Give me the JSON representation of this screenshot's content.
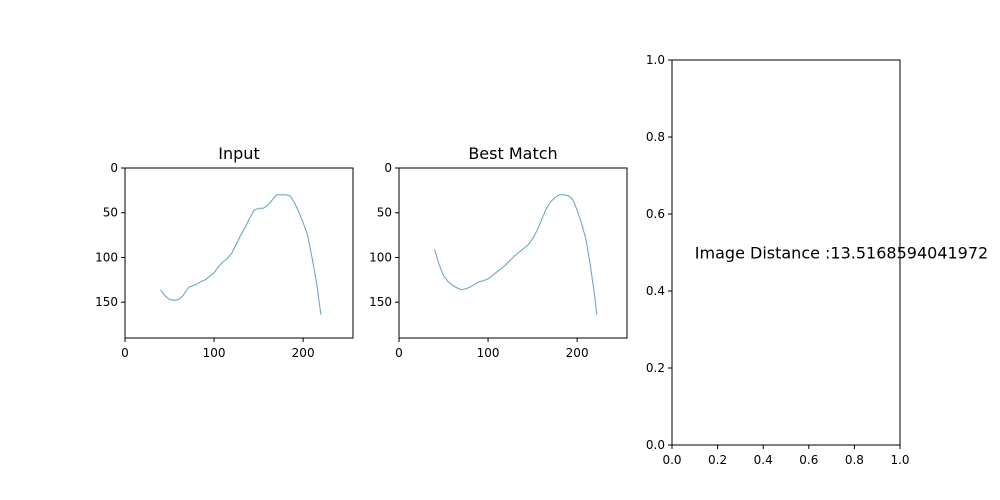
{
  "chart_data": [
    {
      "type": "line",
      "title": "Input",
      "xlim": [
        0,
        256
      ],
      "ylim": [
        190,
        0
      ],
      "y_inverted": true,
      "xticks": [
        0,
        100,
        200
      ],
      "yticks": [
        0,
        50,
        100,
        150
      ],
      "grid": false,
      "line_color": "#5ba3d0",
      "series": [
        {
          "x": [
            40,
            45,
            50,
            56,
            60,
            65,
            68,
            72,
            75,
            80,
            85,
            90,
            95,
            100,
            105,
            110,
            115,
            120,
            125,
            130,
            135,
            140,
            145,
            150,
            155,
            160,
            165,
            170,
            175,
            180,
            185,
            190,
            195,
            200,
            205,
            210,
            215,
            220
          ],
          "y": [
            136,
            143,
            147,
            148,
            147,
            143,
            138,
            133,
            132,
            130,
            127,
            125,
            121,
            117,
            110,
            105,
            101,
            95,
            85,
            75,
            66,
            56,
            47,
            45,
            45,
            42,
            36,
            30,
            30,
            30,
            31,
            38,
            49,
            61,
            75,
            100,
            128,
            164
          ]
        }
      ]
    },
    {
      "type": "line",
      "title": "Best Match",
      "xlim": [
        0,
        256
      ],
      "ylim": [
        190,
        0
      ],
      "y_inverted": true,
      "xticks": [
        0,
        100,
        200
      ],
      "yticks": [
        0,
        50,
        100,
        150
      ],
      "grid": false,
      "line_color": "#5ba3d0",
      "series": [
        {
          "x": [
            40,
            45,
            50,
            55,
            60,
            65,
            70,
            75,
            80,
            85,
            90,
            95,
            100,
            105,
            110,
            115,
            120,
            125,
            130,
            135,
            140,
            145,
            150,
            155,
            160,
            165,
            170,
            175,
            180,
            185,
            190,
            195,
            200,
            205,
            210,
            215,
            220,
            222
          ],
          "y": [
            91,
            108,
            120,
            127,
            131,
            134,
            136,
            135,
            133,
            130,
            127,
            126,
            124,
            120,
            116,
            112,
            108,
            103,
            98,
            94,
            90,
            86,
            79,
            70,
            58,
            46,
            38,
            33,
            30,
            30,
            31,
            35,
            47,
            62,
            80,
            110,
            145,
            164
          ]
        }
      ]
    },
    {
      "type": "text",
      "title": "",
      "xlim": [
        0.0,
        1.0
      ],
      "ylim": [
        0.0,
        1.0
      ],
      "xticks": [
        0.0,
        0.2,
        0.4,
        0.6,
        0.8,
        1.0
      ],
      "yticks": [
        0.0,
        0.2,
        0.4,
        0.6,
        0.8,
        1.0
      ],
      "tick_decimals": 1,
      "grid": false,
      "annotation": {
        "text": "Image Distance :13.5168594041972",
        "x": 0.1,
        "y": 0.5
      }
    }
  ]
}
